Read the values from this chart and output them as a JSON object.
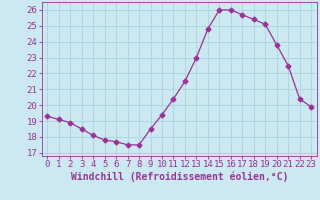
{
  "x": [
    0,
    1,
    2,
    3,
    4,
    5,
    6,
    7,
    8,
    9,
    10,
    11,
    12,
    13,
    14,
    15,
    16,
    17,
    18,
    19,
    20,
    21,
    22,
    23
  ],
  "y": [
    19.3,
    19.1,
    18.9,
    18.5,
    18.1,
    17.8,
    17.7,
    17.5,
    17.5,
    18.5,
    19.4,
    20.4,
    21.5,
    23.0,
    24.8,
    26.0,
    26.0,
    25.7,
    25.4,
    25.1,
    23.8,
    22.5,
    20.4,
    19.9
  ],
  "line_color": "#993399",
  "marker": "D",
  "markersize": 2.5,
  "linewidth": 0.9,
  "xlabel": "Windchill (Refroidissement éolien,°C)",
  "xlabel_fontsize": 7,
  "ylabel_ticks": [
    17,
    18,
    19,
    20,
    21,
    22,
    23,
    24,
    25,
    26
  ],
  "xlim": [
    -0.5,
    23.5
  ],
  "ylim": [
    16.8,
    26.5
  ],
  "background_color": "#cce8f0",
  "grid_color": "#aad4e0",
  "tick_label_fontsize": 6.5,
  "xtick_labels": [
    "0",
    "1",
    "2",
    "3",
    "4",
    "5",
    "6",
    "7",
    "8",
    "9",
    "10",
    "11",
    "12",
    "13",
    "14",
    "15",
    "16",
    "17",
    "18",
    "19",
    "20",
    "21",
    "22",
    "23"
  ]
}
